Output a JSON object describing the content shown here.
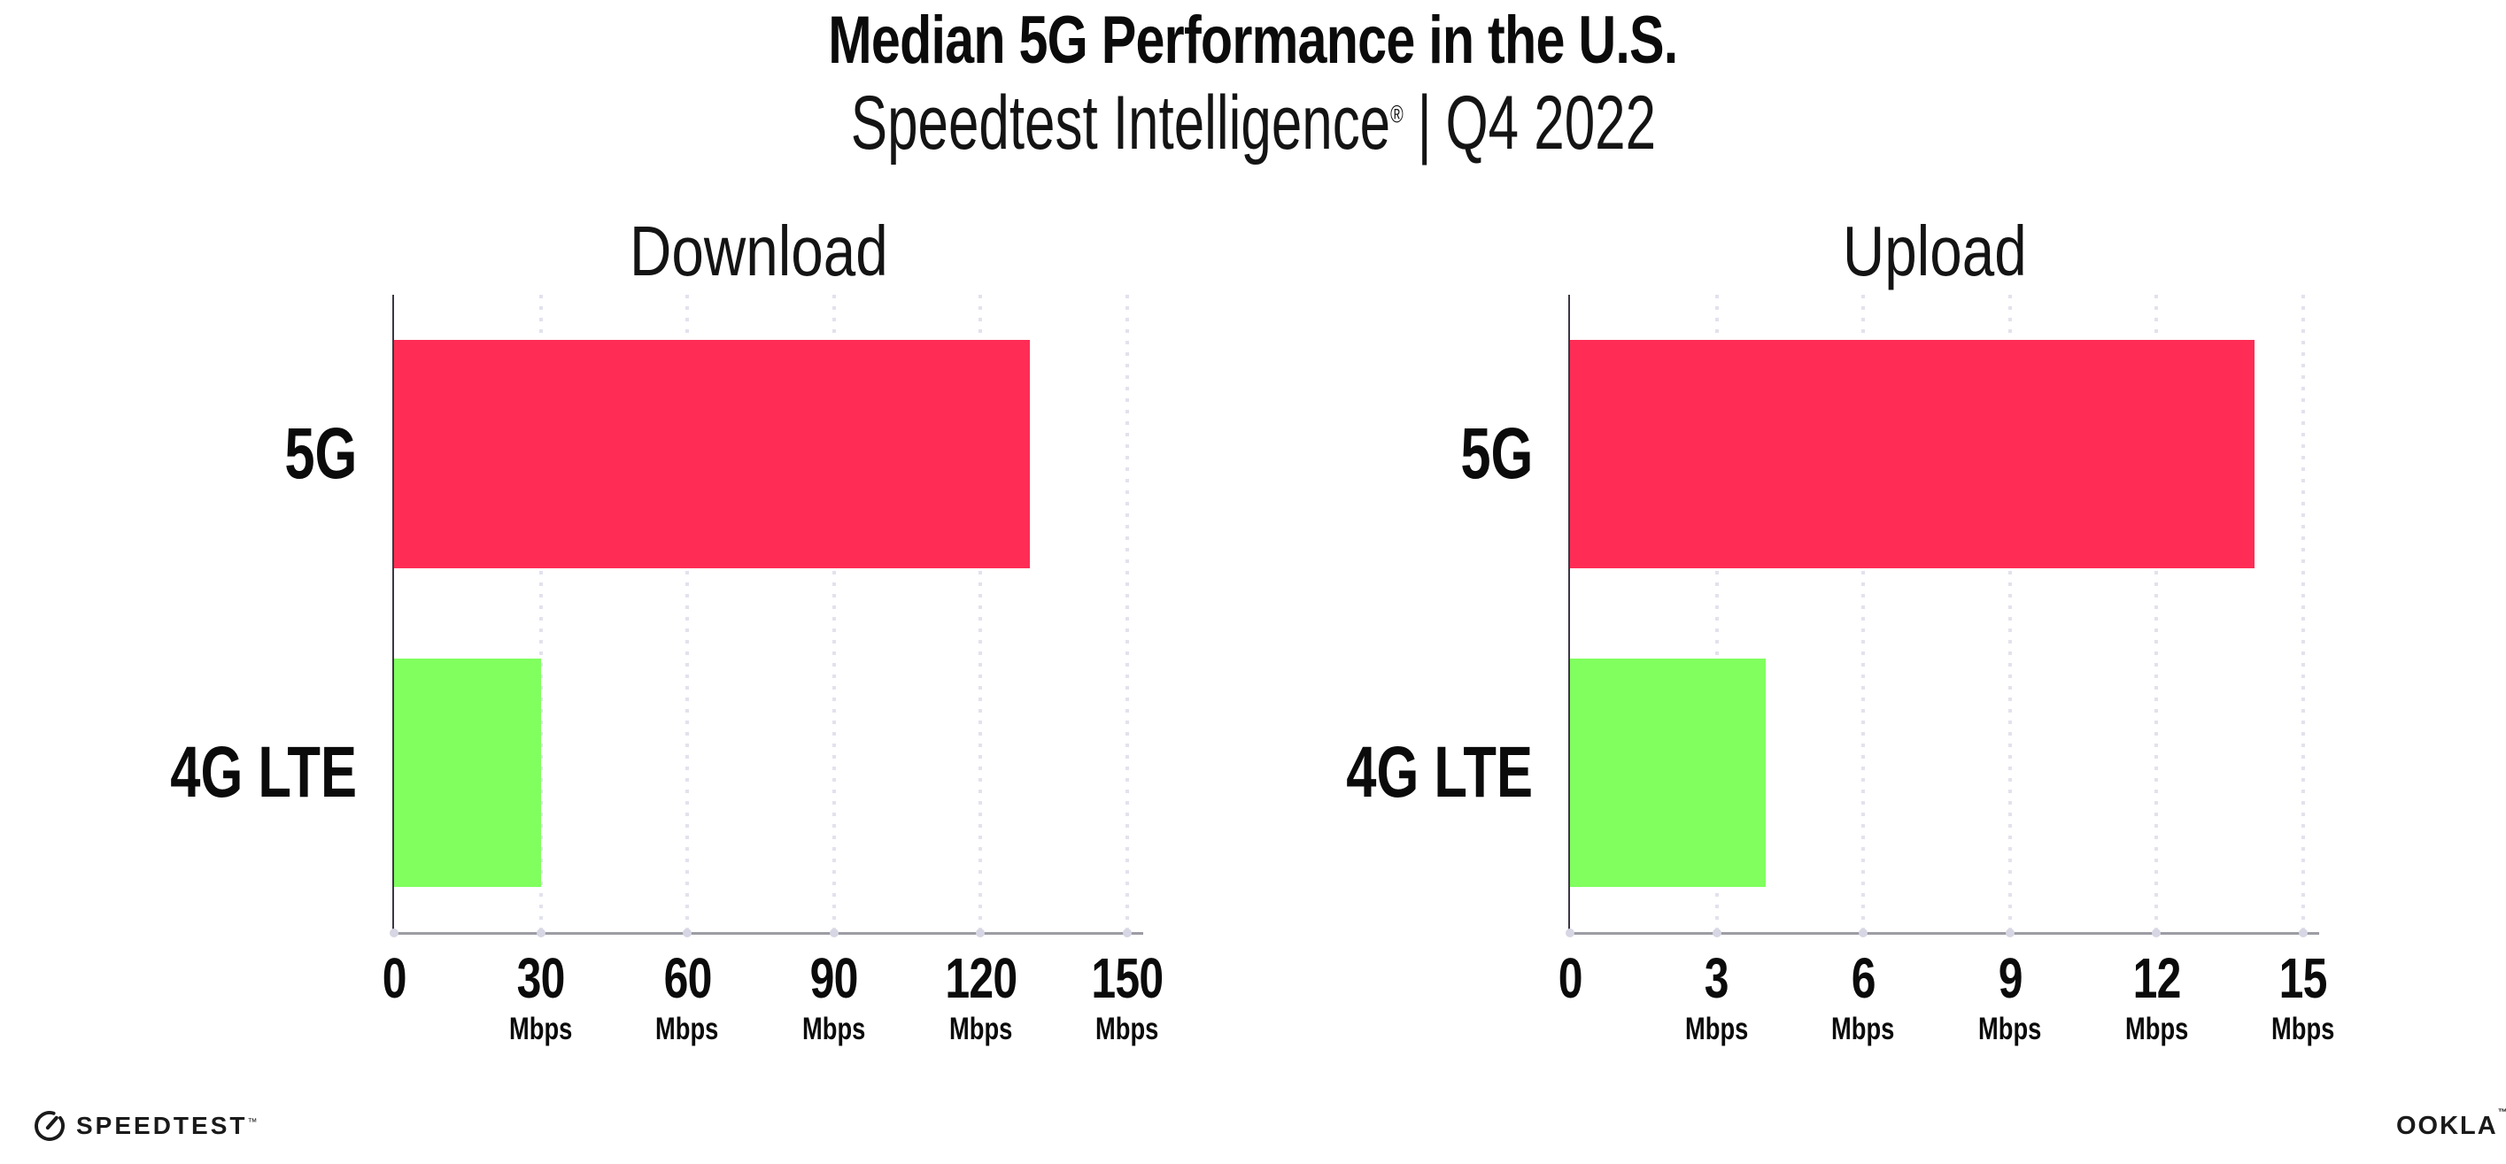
{
  "header": {
    "title": "Median 5G Performance in the U.S.",
    "subtitle_brand": "Speedtest Intelligence",
    "subtitle_reg": "®",
    "subtitle_sep": "|",
    "subtitle_period": "Q4 2022"
  },
  "chart_data": [
    {
      "type": "bar",
      "orientation": "horizontal",
      "title": "Download",
      "categories": [
        "5G",
        "4G LTE"
      ],
      "values": [
        130,
        30
      ],
      "unit": "Mbps",
      "xlabel": "",
      "ylabel": "",
      "xlim": [
        0,
        150
      ],
      "xticks": [
        0,
        30,
        60,
        90,
        120,
        150
      ],
      "bar_colors": [
        "#FF2D55",
        "#80FF5F"
      ],
      "grid": "dotted vertical gridlines at each nonzero tick",
      "legend": "none"
    },
    {
      "type": "bar",
      "orientation": "horizontal",
      "title": "Upload",
      "categories": [
        "5G",
        "4G LTE"
      ],
      "values": [
        14,
        4
      ],
      "unit": "Mbps",
      "xlabel": "",
      "ylabel": "",
      "xlim": [
        0,
        15
      ],
      "xticks": [
        0,
        3,
        6,
        9,
        12,
        15
      ],
      "bar_colors": [
        "#FF2D55",
        "#80FF5F"
      ],
      "grid": "dotted vertical gridlines at each nonzero tick",
      "legend": "none"
    }
  ],
  "footer": {
    "speedtest": "SPEEDTEST",
    "speedtest_mark": "™",
    "ookla": "OOKLA",
    "ookla_mark": "™"
  },
  "colors": {
    "bar_5g": "#FF2D55",
    "bar_4g_lte": "#80FF5F",
    "x_axis": "#9C9CA4",
    "y_axis": "#3C3744",
    "gridline": "#E2E2EE",
    "tick_dot": "#D6D6E4",
    "text": "#111111",
    "background": "#FFFFFF"
  }
}
